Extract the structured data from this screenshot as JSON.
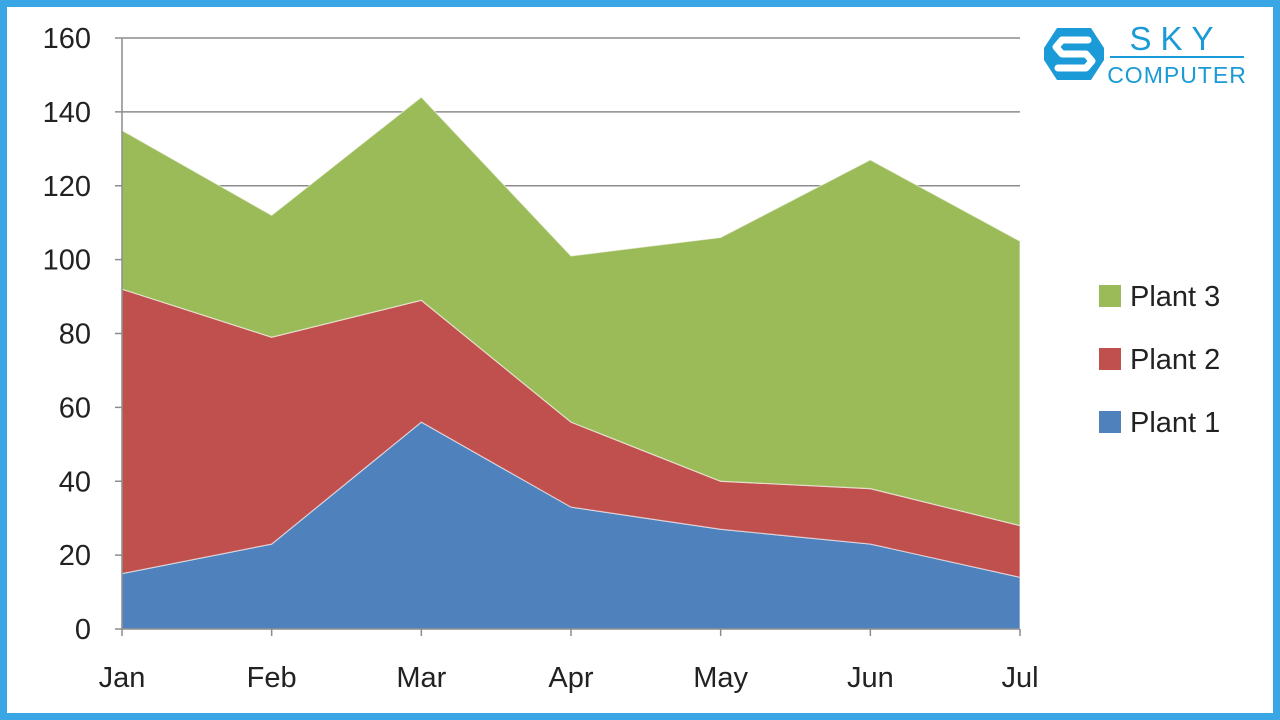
{
  "brand": {
    "line1": "SKY",
    "line2": "COMPUTER",
    "color": "#1a9ad6"
  },
  "chart_data": {
    "type": "area",
    "stacked": true,
    "categories": [
      "Jan",
      "Feb",
      "Mar",
      "Apr",
      "May",
      "Jun",
      "Jul"
    ],
    "series": [
      {
        "name": "Plant 1",
        "color": "#4f81bd",
        "values": [
          15,
          23,
          56,
          33,
          27,
          23,
          14
        ]
      },
      {
        "name": "Plant 2",
        "color": "#c0504d",
        "values": [
          77,
          56,
          33,
          23,
          13,
          15,
          14
        ]
      },
      {
        "name": "Plant 3",
        "color": "#9bbb59",
        "values": [
          43,
          33,
          55,
          45,
          66,
          89,
          77
        ]
      }
    ],
    "ylim": [
      0,
      160
    ],
    "yticks": [
      "0",
      "20",
      "40",
      "60",
      "80",
      "100",
      "120",
      "140",
      "160"
    ],
    "grid": true,
    "legend_position": "right"
  }
}
